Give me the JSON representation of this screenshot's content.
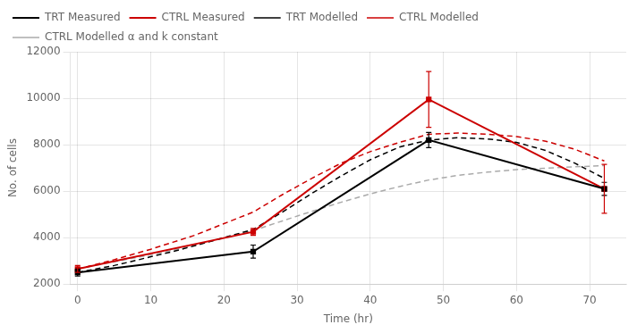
{
  "chart_data": {
    "type": "line",
    "xlabel": "Time (hr)",
    "ylabel": "No. of cells",
    "xlim": [
      -1,
      75
    ],
    "ylim": [
      2000,
      12000
    ],
    "xticks": [
      0,
      10,
      20,
      30,
      40,
      50,
      60,
      70
    ],
    "yticks": [
      2000,
      4000,
      6000,
      8000,
      10000,
      12000
    ],
    "grid": true,
    "legend": "upper left",
    "series": [
      {
        "name": "TRT Measured",
        "color": "#000000",
        "line_style": "solid",
        "marker": "square",
        "x": [
          0,
          24,
          48,
          72
        ],
        "values": [
          2500,
          3400,
          8200,
          6100
        ],
        "errors": [
          150,
          280,
          330,
          280
        ]
      },
      {
        "name": "CTRL Measured",
        "color": "#cc0000",
        "line_style": "solid",
        "marker": "square",
        "x": [
          0,
          24,
          48,
          72
        ],
        "values": [
          2650,
          4250,
          9950,
          6100
        ],
        "errors": [
          150,
          150,
          1200,
          1050
        ]
      },
      {
        "name": "TRT Modelled",
        "color": "#000000",
        "line_style": "dashed",
        "marker": "none",
        "x": [
          0,
          2,
          5,
          8,
          10,
          13,
          16,
          20,
          24,
          28,
          32,
          36,
          40,
          44,
          48,
          52,
          56,
          60,
          64,
          68,
          72
        ],
        "values": [
          2500,
          2620,
          2800,
          3020,
          3180,
          3400,
          3650,
          4000,
          4350,
          5100,
          5900,
          6650,
          7350,
          7900,
          8200,
          8300,
          8250,
          8100,
          7750,
          7200,
          6550
        ]
      },
      {
        "name": "CTRL Modelled",
        "color": "#cc0000",
        "line_style": "dashed",
        "marker": "none",
        "x": [
          0,
          2,
          5,
          8,
          10,
          13,
          16,
          20,
          24,
          28,
          32,
          36,
          40,
          44,
          48,
          52,
          56,
          60,
          64,
          68,
          72
        ],
        "values": [
          2650,
          2800,
          3050,
          3320,
          3500,
          3800,
          4100,
          4600,
          5100,
          5850,
          6550,
          7200,
          7700,
          8100,
          8450,
          8500,
          8450,
          8350,
          8150,
          7800,
          7300
        ]
      },
      {
        "name": "CTRL Modelled α and k constant",
        "color": "#aaaaaa",
        "line_style": "dashed",
        "marker": "none",
        "x": [
          0,
          2,
          5,
          8,
          10,
          13,
          16,
          20,
          24,
          28,
          32,
          36,
          40,
          44,
          48,
          52,
          56,
          60,
          64,
          68,
          72
        ],
        "values": [
          2650,
          2780,
          2960,
          3140,
          3270,
          3460,
          3670,
          3980,
          4300,
          4720,
          5130,
          5520,
          5880,
          6200,
          6480,
          6680,
          6820,
          6930,
          6990,
          7050,
          7100
        ]
      }
    ]
  }
}
